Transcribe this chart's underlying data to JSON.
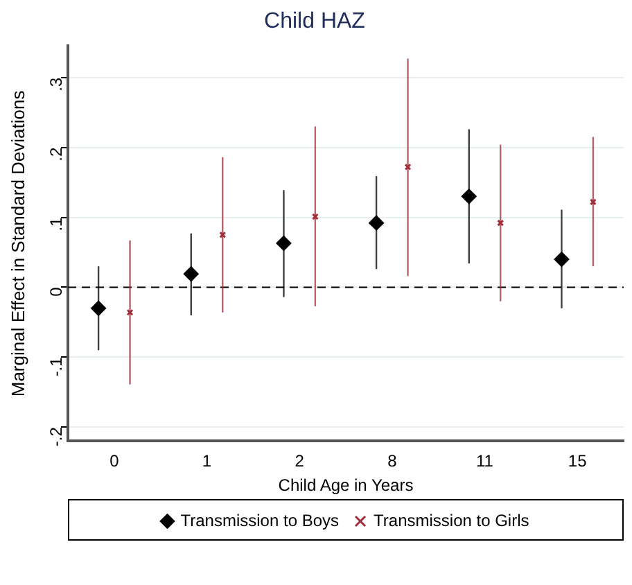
{
  "chart_data": {
    "type": "scatter",
    "title": "Child HAZ",
    "xlabel": "Child Age in Years",
    "ylabel": "Marginal Effect in Standard Deviations",
    "categories": [
      "0",
      "1",
      "2",
      "8",
      "11",
      "15"
    ],
    "series": [
      {
        "name": "Transmission to Boys",
        "color": "#000000",
        "marker": "diamond",
        "values": [
          -0.03,
          0.019,
          0.063,
          0.092,
          0.13,
          0.04
        ],
        "errors": [
          [
            -0.09,
            0.03
          ],
          [
            -0.04,
            0.077
          ],
          [
            -0.014,
            0.139
          ],
          [
            0.026,
            0.159
          ],
          [
            0.034,
            0.226
          ],
          [
            -0.03,
            0.111
          ]
        ]
      },
      {
        "name": "Transmission to Girls",
        "color": "#a0303a",
        "marker": "cross",
        "values": [
          -0.036,
          0.075,
          0.101,
          0.172,
          0.092,
          0.122
        ],
        "errors": [
          [
            -0.139,
            0.067
          ],
          [
            -0.036,
            0.186
          ],
          [
            -0.027,
            0.23
          ],
          [
            0.016,
            0.327
          ],
          [
            -0.02,
            0.204
          ],
          [
            0.03,
            0.215
          ]
        ]
      }
    ],
    "ylim": [
      -0.22,
      0.345
    ],
    "yticks": [
      {
        "value": -0.2,
        "label": "-.2"
      },
      {
        "value": -0.1,
        "label": "-.1"
      },
      0,
      {
        "value": 0.1,
        "label": ".1"
      },
      {
        "value": 0.2,
        "label": ".2"
      },
      {
        "value": 0.3,
        "label": ".3"
      }
    ],
    "ref_lines": [
      {
        "axis": "y",
        "value": 0,
        "line_style": "dashed",
        "color": "#000000"
      }
    ],
    "grid": "y",
    "legend": "bottom"
  }
}
